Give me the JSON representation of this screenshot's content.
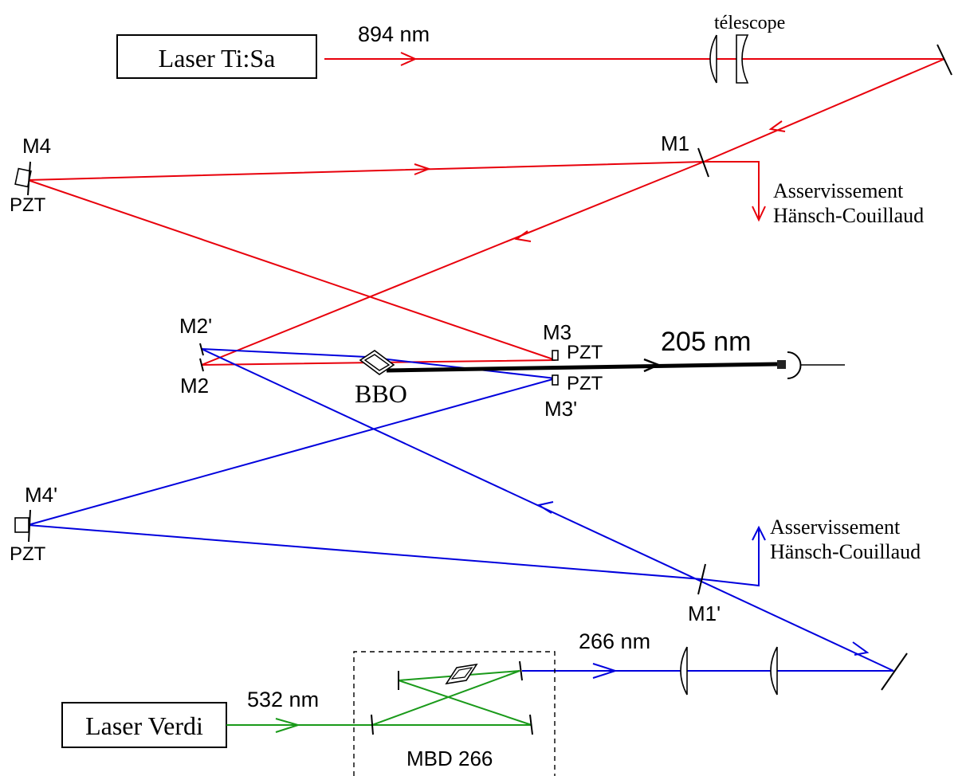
{
  "lasers": {
    "tisa": "Laser Ti:Sa",
    "verdi": "Laser Verdi"
  },
  "wavelengths": {
    "ir": "894 nm",
    "uv": "266 nm",
    "green": "532 nm",
    "deep_uv": "205 nm"
  },
  "optics": {
    "telescope": "télescope",
    "crystal": "BBO",
    "doubler": "MBD 266"
  },
  "mirrors": {
    "m1": "M1",
    "m2": "M2",
    "m3": "M3",
    "m4": "M4",
    "m1p": "M1'",
    "m2p": "M2'",
    "m3p": "M3'",
    "m4p": "M4'"
  },
  "pzt": "PZT",
  "servo": {
    "line1": "Asservissement",
    "line2": "Hänsch-Couillaud"
  },
  "colors": {
    "ir_beam": "#e8000b",
    "uv_beam": "#0000dd",
    "green_beam": "#1a9a1a",
    "output_beam": "#000000"
  }
}
